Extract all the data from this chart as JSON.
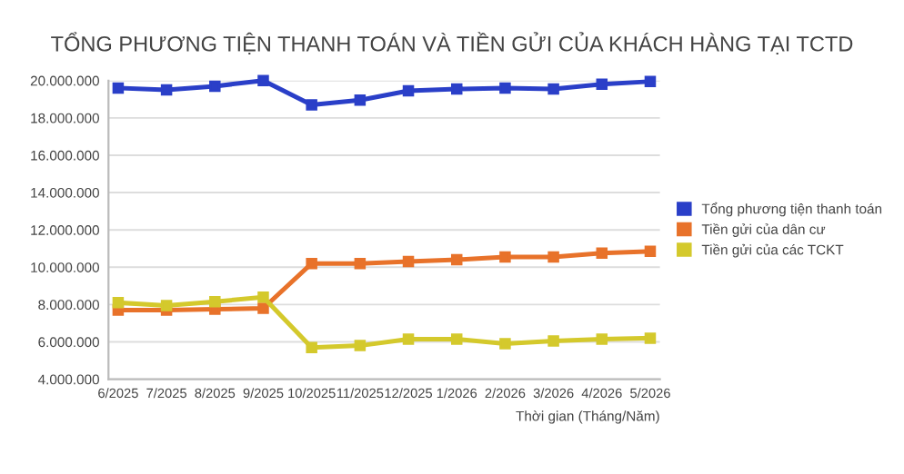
{
  "chart_data": {
    "type": "line",
    "title": "TỔNG PHƯƠNG TIỆN THANH TOÁN VÀ TIỀN GỬI CỦA KHÁCH HÀNG TẠI TCTD",
    "xlabel": "Thời gian (Tháng/Năm)",
    "categories": [
      "6/2025",
      "7/2025",
      "8/2025",
      "9/2025",
      "10/2025",
      "11/2025",
      "12/2025",
      "1/2026",
      "2/2026",
      "3/2026",
      "4/2026",
      "5/2026"
    ],
    "series": [
      {
        "name": "Tổng phương tiện thanh toán",
        "color": "#2a3fc8",
        "values": [
          19600000,
          19500000,
          19700000,
          20000000,
          18700000,
          18950000,
          19450000,
          19550000,
          19600000,
          19550000,
          19800000,
          19950000
        ]
      },
      {
        "name": "Tiền gửi của dân cư",
        "color": "#e8722a",
        "values": [
          7700000,
          7700000,
          7750000,
          7800000,
          10200000,
          10200000,
          10300000,
          10400000,
          10550000,
          10550000,
          10750000,
          10850000
        ]
      },
      {
        "name": "Tiền gửi của các TCKT",
        "color": "#d4c92c",
        "values": [
          8100000,
          7950000,
          8150000,
          8400000,
          5700000,
          5800000,
          6150000,
          6150000,
          5900000,
          6050000,
          6150000,
          6200000
        ]
      }
    ],
    "ylim": [
      4000000,
      20000000
    ],
    "yticks": [
      {
        "value": 4000000,
        "label": "4.000.000"
      },
      {
        "value": 6000000,
        "label": "6.000.000"
      },
      {
        "value": 8000000,
        "label": "8.000.000"
      },
      {
        "value": 10000000,
        "label": "10.000.000"
      },
      {
        "value": 12000000,
        "label": "12.000.000"
      },
      {
        "value": 14000000,
        "label": "14.000.000"
      },
      {
        "value": 16000000,
        "label": "16.000.000"
      },
      {
        "value": 18000000,
        "label": "18.000.000"
      },
      {
        "value": 20000000,
        "label": "20.000.000"
      }
    ],
    "grid": "y",
    "legend": "right",
    "marker": "square",
    "line_style": "solid"
  }
}
